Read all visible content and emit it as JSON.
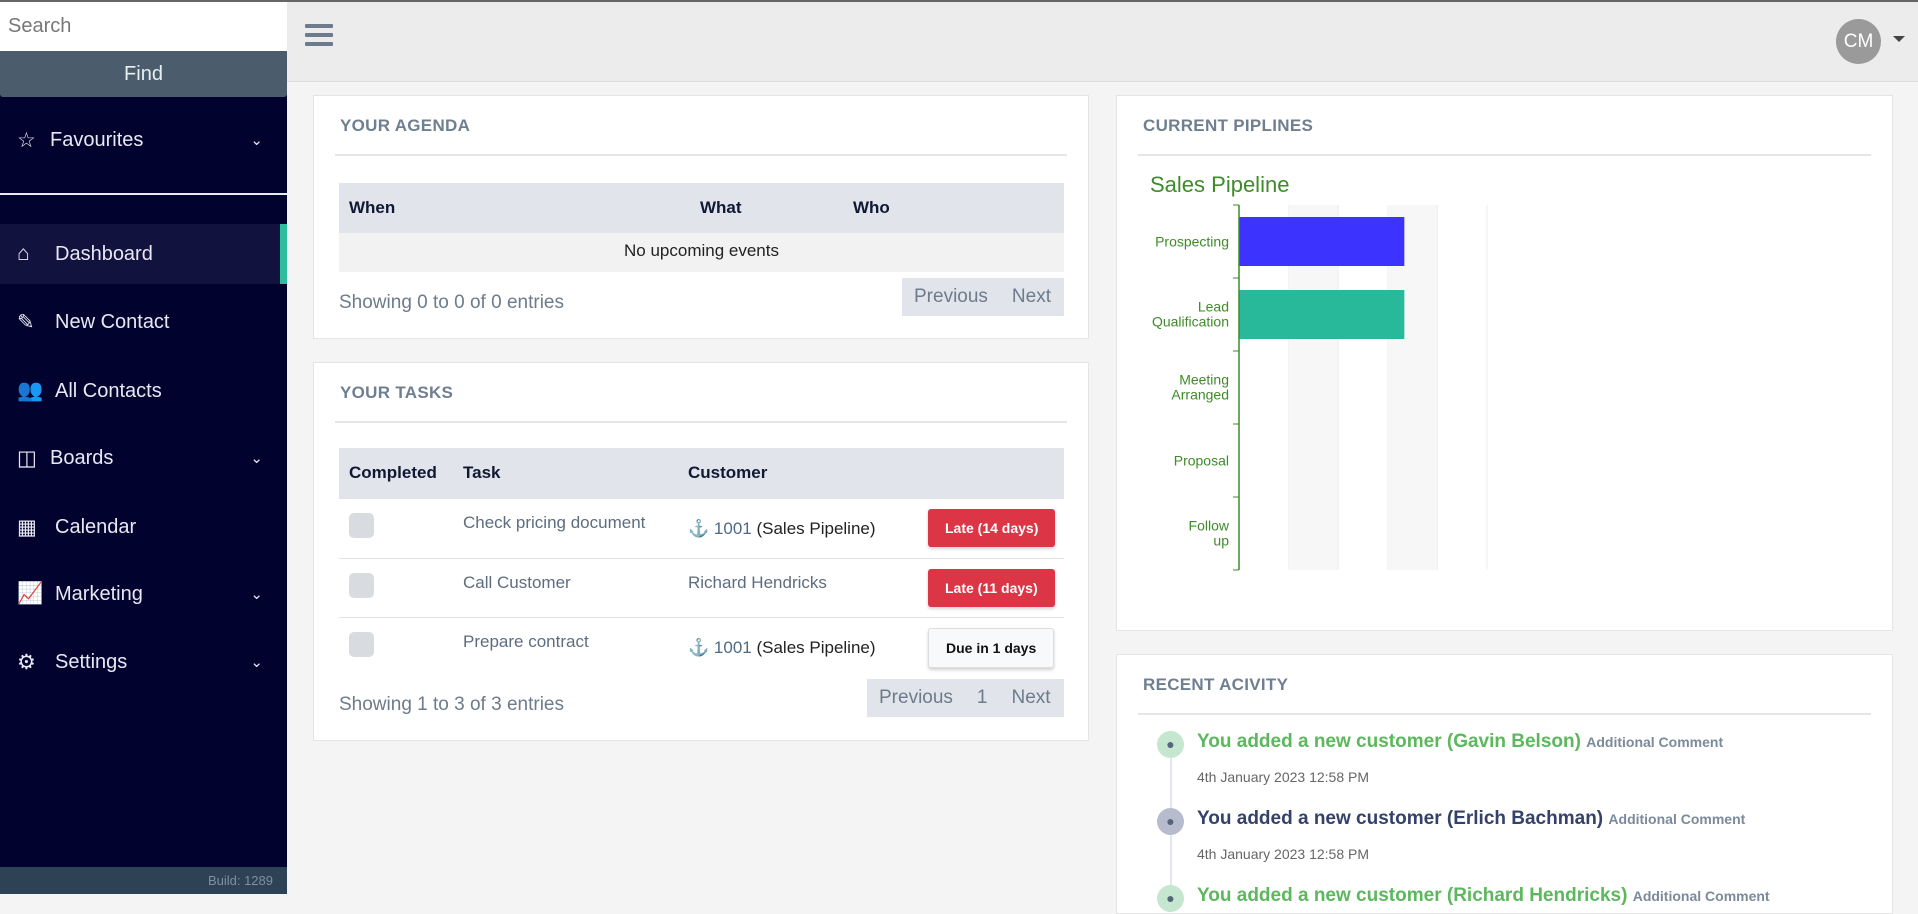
{
  "sidebar": {
    "search_placeholder": "Search",
    "find_label": "Find",
    "favourites": {
      "label": "Favourites",
      "icon": "star-icon"
    },
    "items": [
      {
        "label": "Dashboard",
        "icon": "home-icon",
        "active": true
      },
      {
        "label": "New Contact",
        "icon": "edit-icon"
      },
      {
        "label": "All Contacts",
        "icon": "users-icon"
      },
      {
        "label": "Boards",
        "icon": "columns-icon",
        "expandable": true
      },
      {
        "label": "Calendar",
        "icon": "calendar-icon"
      },
      {
        "label": "Marketing",
        "icon": "chart-line-icon",
        "expandable": true
      },
      {
        "label": "Settings",
        "icon": "cogs-icon",
        "expandable": true
      }
    ],
    "build": "Build: 1289",
    "accent": "#2bbd9e"
  },
  "topbar": {
    "avatar_initials": "CM"
  },
  "agenda": {
    "title": "YOUR AGENDA",
    "columns": [
      "When",
      "What",
      "Who"
    ],
    "empty": "No upcoming events",
    "showing": "Showing 0 to 0 of 0 entries",
    "prev": "Previous",
    "next": "Next"
  },
  "tasks": {
    "title": "YOUR TASKS",
    "columns": [
      "Completed",
      "Task",
      "Customer"
    ],
    "rows": [
      {
        "task": "Check pricing document",
        "customer_id": "1001",
        "customer": "(Sales Pipeline)",
        "anchor": true,
        "status": "Late (14 days)",
        "type": "late"
      },
      {
        "task": "Call Customer",
        "customer_id": "",
        "customer": "Richard Hendricks",
        "anchor": false,
        "status": "Late (11 days)",
        "type": "late"
      },
      {
        "task": "Prepare contract",
        "customer_id": "1001",
        "customer": "(Sales Pipeline)",
        "anchor": true,
        "status": "Due in 1 days",
        "type": "due"
      }
    ],
    "showing": "Showing 1 to 3 of 3 entries",
    "prev": "Previous",
    "page": "1",
    "next": "Next"
  },
  "pipelines": {
    "title": "CURRENT PIPLINES"
  },
  "chart_data": {
    "type": "bar",
    "orientation": "horizontal",
    "title": "Sales Pipeline",
    "categories": [
      "Prospecting",
      "Lead Qualification",
      "Meeting Arranged",
      "Proposal",
      "Follow up"
    ],
    "values": [
      1,
      1,
      0,
      0,
      0
    ],
    "colors": [
      "#3d33ff",
      "#27b99a"
    ],
    "xlim": [
      0,
      1.5
    ],
    "text_color": "#3f8a2a"
  },
  "activity": {
    "title": "RECENT ACIVITY",
    "items": [
      {
        "text": "You added a new customer (Gavin Belson)",
        "extra": "Additional Comment",
        "time": "4th January 2023 12:58 PM",
        "color": "#5cb85c"
      },
      {
        "text": "You added a new customer (Erlich Bachman)",
        "extra": "Additional Comment",
        "time": "4th January 2023 12:58 PM",
        "color": "#34416a"
      },
      {
        "text": "You added a new customer (Richard Hendricks)",
        "extra": "Additional Comment",
        "time": "",
        "color": "#5cb85c"
      }
    ]
  }
}
